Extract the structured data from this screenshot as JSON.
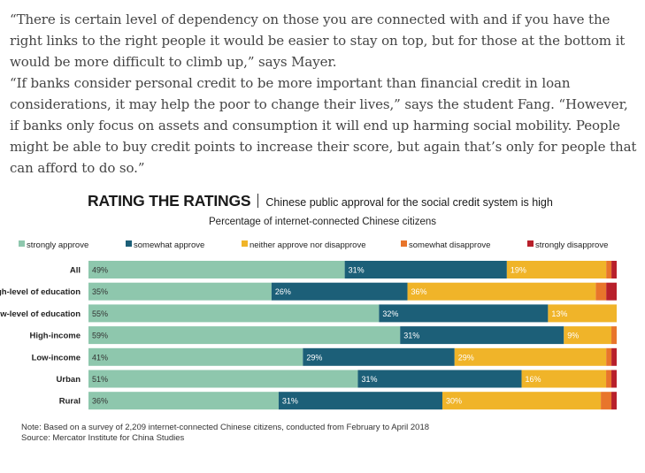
{
  "article": {
    "paragraphs": [
      "“There is certain level of dependency on those you are connected with and if you have the right links to the right people it would be easier to stay on top, but for those at the bottom it would be more difficult to climb up,” says Mayer.",
      "“If banks consider personal credit to be more important than financial credit in loan considerations, it may help the poor to change their lives,” says the student Fang. “However, if banks only focus on assets and consumption it will end up harming social mobility. People might be able to buy credit points to increase their score, but again that’s only for people that can afford to do so.”"
    ]
  },
  "chart_data": {
    "type": "bar",
    "orientation": "horizontal",
    "stacked": true,
    "title": "RATING THE RATINGS",
    "subtitle": "Chinese public approval for the social credit system is high",
    "caption": "Percentage of internet-connected Chinese citizens",
    "categories": [
      "All",
      "High-level of education",
      "Low-level of education",
      "High-income",
      "Low-income",
      "Urban",
      "Rural"
    ],
    "series": [
      {
        "name": "strongly approve",
        "color": "#8ec7ad",
        "values": [
          49,
          35,
          55,
          59,
          41,
          51,
          36
        ],
        "labels": [
          "49%",
          "35%",
          "55%",
          "59%",
          "41%",
          "51%",
          "36%"
        ]
      },
      {
        "name": "somewhat approve",
        "color": "#1c5f78",
        "values": [
          31,
          26,
          32,
          31,
          29,
          31,
          31
        ],
        "labels": [
          "31%",
          "26%",
          "32%",
          "31%",
          "29%",
          "31%",
          "31%"
        ]
      },
      {
        "name": "neither approve nor disapprove",
        "color": "#f0b429",
        "values": [
          19,
          36,
          13,
          9,
          29,
          16,
          30
        ],
        "labels": [
          "19%",
          "36%",
          "13%",
          "9%",
          "29%",
          "16%",
          "30%"
        ]
      },
      {
        "name": "somewhat disapprove",
        "color": "#e8752b",
        "values": [
          1,
          2,
          0,
          1,
          1,
          1,
          2
        ],
        "labels": [
          "",
          "",
          "",
          "",
          "",
          "",
          ""
        ]
      },
      {
        "name": "strongly disapprove",
        "color": "#b8202b",
        "values": [
          1,
          2,
          0,
          0,
          1,
          1,
          1
        ],
        "labels": [
          "",
          "",
          "",
          "",
          "",
          "",
          ""
        ]
      }
    ],
    "xlim": [
      0,
      100
    ],
    "grid": false,
    "legend_position": "top"
  },
  "note": {
    "line1": "Note: Based on a survey of 2,209 internet-connected Chinese citizens, conducted from February to April 2018",
    "line2": "Source: Mercator Institute for China Studies"
  }
}
